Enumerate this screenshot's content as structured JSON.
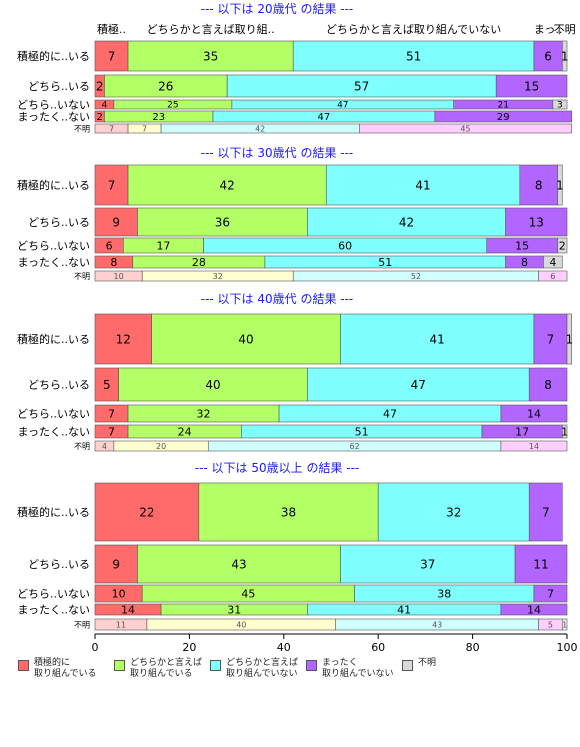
{
  "chart_data": {
    "type": "bar",
    "orientation": "horizontal-stacked",
    "categories_legend": [
      "積極的に\n取り組んでいる",
      "どちらかと言えば\n取り組んでいる",
      "どちらかと言えば\n取り組んでいない",
      "まったく\n取り組んでいない",
      "不明"
    ],
    "colors": [
      "#ff6b6b",
      "#b3ff66",
      "#80ffff",
      "#b366ff",
      "#d9d9d9"
    ],
    "colors_small": [
      "#ffd0d0",
      "#ffffd0",
      "#d0ffff",
      "#ffd0ff",
      "#f0f0f0"
    ],
    "x_ticks": [
      "0",
      "20",
      "40",
      "60",
      "80",
      "100"
    ],
    "xlim": [
      0,
      100
    ],
    "panels": [
      {
        "title": "--- 以下は 20歳代 の結果 ---",
        "header_labels": [
          "積極..",
          "どちらかと言えば取り組..",
          "どちらかと言えば取り組んでいない",
          "まっ..",
          "不明"
        ],
        "rows": [
          {
            "label": "積極的に..いる",
            "values": [
              7,
              35,
              51,
              6,
              1
            ]
          },
          {
            "label": "どちら..いる",
            "values": [
              2,
              26,
              57,
              15,
              0
            ]
          },
          {
            "label": "どちら..いない",
            "values": [
              4,
              25,
              47,
              21,
              3
            ]
          },
          {
            "label": "まったく..ない",
            "values": [
              2,
              23,
              47,
              29,
              0
            ]
          },
          {
            "label": "不明",
            "values": [
              7,
              7,
              42,
              45,
              0
            ]
          }
        ]
      },
      {
        "title": "--- 以下は 30歳代 の結果 ---",
        "rows": [
          {
            "label": "積極的に..いる",
            "values": [
              7,
              42,
              41,
              8,
              1
            ]
          },
          {
            "label": "どちら..いる",
            "values": [
              9,
              36,
              42,
              13,
              0
            ]
          },
          {
            "label": "どちら..いない",
            "values": [
              6,
              17,
              60,
              15,
              2
            ]
          },
          {
            "label": "まったく..ない",
            "values": [
              8,
              28,
              51,
              8,
              4
            ]
          },
          {
            "label": "不明",
            "values": [
              10,
              32,
              52,
              6,
              0
            ]
          }
        ]
      },
      {
        "title": "--- 以下は 40歳代 の結果 ---",
        "rows": [
          {
            "label": "積極的に..いる",
            "values": [
              12,
              40,
              41,
              7,
              1
            ]
          },
          {
            "label": "どちら..いる",
            "values": [
              5,
              40,
              47,
              8,
              0
            ]
          },
          {
            "label": "どちら..いない",
            "values": [
              7,
              32,
              47,
              14,
              0
            ]
          },
          {
            "label": "まったく..ない",
            "values": [
              7,
              24,
              51,
              17,
              1
            ]
          },
          {
            "label": "不明",
            "values": [
              4,
              20,
              62,
              14,
              0
            ]
          }
        ]
      },
      {
        "title": "--- 以下は 50歳以上 の結果 ---",
        "rows": [
          {
            "label": "積極的に..いる",
            "values": [
              22,
              38,
              32,
              7,
              0
            ]
          },
          {
            "label": "どちら..いる",
            "values": [
              9,
              43,
              37,
              11,
              0
            ]
          },
          {
            "label": "どちら..いない",
            "values": [
              10,
              45,
              38,
              7,
              0
            ]
          },
          {
            "label": "まったく..ない",
            "values": [
              14,
              31,
              41,
              14,
              0
            ]
          },
          {
            "label": "不明",
            "values": [
              11,
              40,
              43,
              5,
              1
            ]
          }
        ]
      }
    ]
  }
}
